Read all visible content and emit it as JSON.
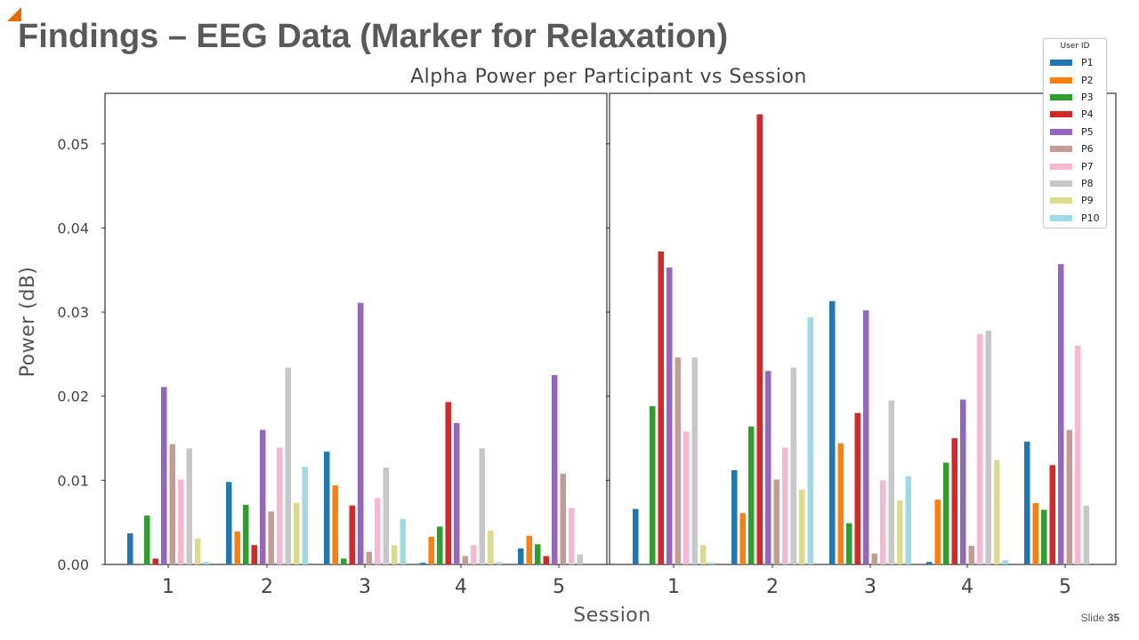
{
  "slide": {
    "title": "Findings – EEG Data (Marker for Relaxation)",
    "number_prefix": "Slide",
    "number": "35"
  },
  "chart_data": {
    "type": "bar",
    "title": "Alpha Power per Participant vs Session",
    "xlabel": "Session",
    "ylabel": "Power (dB)",
    "ylim": [
      0,
      0.056
    ],
    "yticks": [
      "0.00",
      "0.01",
      "0.02",
      "0.03",
      "0.04",
      "0.05"
    ],
    "ytick_values": [
      0,
      0.01,
      0.02,
      0.03,
      0.04,
      0.05
    ],
    "categories": [
      "1",
      "2",
      "3",
      "4",
      "5"
    ],
    "grid": false,
    "legend_position": "top-right",
    "legend_title": "User ID",
    "series_names": [
      "P1",
      "P2",
      "P3",
      "P4",
      "P5",
      "P6",
      "P7",
      "P8",
      "P9",
      "P10"
    ],
    "colors": [
      "#1f77b4",
      "#ff7f0e",
      "#2ca02c",
      "#d62728",
      "#9467bd",
      "#c49c94",
      "#f7b6d2",
      "#c7c7c7",
      "#dbdb8d",
      "#9edae5"
    ],
    "panels": [
      {
        "series": [
          {
            "name": "P1",
            "values": [
              0.0037,
              0.0098,
              0.0134,
              0.0002,
              0.0019
            ]
          },
          {
            "name": "P2",
            "values": [
              0.0,
              0.0039,
              0.0094,
              0.0033,
              0.0034
            ]
          },
          {
            "name": "P3",
            "values": [
              0.0058,
              0.0071,
              0.0007,
              0.0045,
              0.0024
            ]
          },
          {
            "name": "P4",
            "values": [
              0.0007,
              0.0023,
              0.007,
              0.0193,
              0.001
            ]
          },
          {
            "name": "P5",
            "values": [
              0.0211,
              0.016,
              0.0311,
              0.0168,
              0.0225
            ]
          },
          {
            "name": "P6",
            "values": [
              0.0143,
              0.0063,
              0.0015,
              0.001,
              0.0108
            ]
          },
          {
            "name": "P7",
            "values": [
              0.0101,
              0.0139,
              0.0079,
              0.0023,
              0.0067
            ]
          },
          {
            "name": "P8",
            "values": [
              0.0138,
              0.0234,
              0.0115,
              0.0138,
              0.0012
            ]
          },
          {
            "name": "P9",
            "values": [
              0.0031,
              0.0073,
              0.0023,
              0.004,
              0.0
            ]
          },
          {
            "name": "P10",
            "values": [
              0.0003,
              0.0116,
              0.0054,
              0.0003,
              0.0
            ]
          }
        ]
      },
      {
        "series": [
          {
            "name": "P1",
            "values": [
              0.0066,
              0.0112,
              0.0313,
              0.0003,
              0.0146
            ]
          },
          {
            "name": "P2",
            "values": [
              0.0,
              0.0061,
              0.0144,
              0.0077,
              0.0073
            ]
          },
          {
            "name": "P3",
            "values": [
              0.0188,
              0.0164,
              0.0049,
              0.0121,
              0.0065
            ]
          },
          {
            "name": "P4",
            "values": [
              0.0372,
              0.0535,
              0.018,
              0.015,
              0.0118
            ]
          },
          {
            "name": "P5",
            "values": [
              0.0353,
              0.023,
              0.0302,
              0.0196,
              0.0357
            ]
          },
          {
            "name": "P6",
            "values": [
              0.0246,
              0.0101,
              0.0013,
              0.0022,
              0.016
            ]
          },
          {
            "name": "P7",
            "values": [
              0.0158,
              0.0139,
              0.01,
              0.0274,
              0.026
            ]
          },
          {
            "name": "P8",
            "values": [
              0.0246,
              0.0234,
              0.0195,
              0.0278,
              0.007
            ]
          },
          {
            "name": "P9",
            "values": [
              0.0023,
              0.0089,
              0.0076,
              0.0124,
              0.0
            ]
          },
          {
            "name": "P10",
            "values": [
              0.0002,
              0.0294,
              0.0105,
              0.0005,
              0.0
            ]
          }
        ]
      }
    ]
  }
}
